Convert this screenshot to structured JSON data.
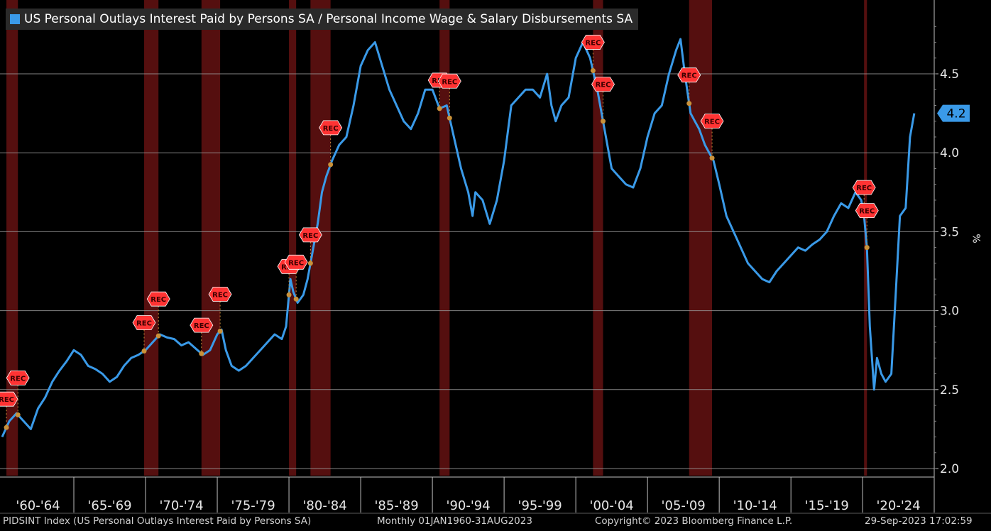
{
  "colors": {
    "series": "#3a9ae8",
    "recession": "#5a1010",
    "background": "#000000",
    "grid": "#9a9a9a",
    "rec_marker": "#ff3333",
    "dot": "#c9913a"
  },
  "footer": {
    "index": "PIDSINT Index (US Personal Outlays Interest Paid by Persons SA)",
    "range": "Monthly 01JAN1960-31AUG2023",
    "copyright": "Copyright© 2023 Bloomberg Finance L.P.",
    "timestamp": "29-Sep-2023 17:02:59"
  },
  "chart_data": {
    "type": "line",
    "title": "",
    "xlabel": "",
    "ylabel": "%",
    "ylim": [
      2.0,
      4.9
    ],
    "xlim": [
      1960.0,
      2024.0
    ],
    "grid": true,
    "legend": "top-left",
    "yticks": [
      "2.0",
      "2.5",
      "3.0",
      "3.5",
      "4.0",
      "4.5"
    ],
    "ytick_values": [
      2.0,
      2.5,
      3.0,
      3.5,
      4.0,
      4.5
    ],
    "xtick_labels": [
      "'60-'64",
      "'65-'69",
      "'70-'74",
      "'75-'79",
      "'80-'84",
      "'85-'89",
      "'90-'94",
      "'95-'99",
      "'00-'04",
      "'05-'09",
      "'10-'14",
      "'15-'19",
      "'20-'24"
    ],
    "xtick_starts": [
      1960,
      1965,
      1970,
      1975,
      1980,
      1985,
      1990,
      1995,
      2000,
      2005,
      2010,
      2015,
      2020
    ],
    "last_value_label": "4.2",
    "recession_label": "REC",
    "recessions": [
      [
        1960.3,
        1961.1
      ],
      [
        1969.9,
        1970.9
      ],
      [
        1973.9,
        1975.2
      ],
      [
        1980.0,
        1980.5
      ],
      [
        1981.5,
        1982.9
      ],
      [
        1990.5,
        1991.2
      ],
      [
        2001.2,
        2001.9
      ],
      [
        2007.9,
        2009.5
      ],
      [
        2020.1,
        2020.3
      ]
    ],
    "series": [
      {
        "name": "US Personal Outlays Interest Paid by Persons SA / Personal Income Wage & Salary Disbursements SA",
        "x": [
          1960.0,
          1960.5,
          1961.0,
          1961.5,
          1962.0,
          1962.5,
          1963.0,
          1963.5,
          1964.0,
          1964.5,
          1965.0,
          1965.5,
          1966.0,
          1966.5,
          1967.0,
          1967.5,
          1968.0,
          1968.5,
          1969.0,
          1969.5,
          1970.0,
          1970.5,
          1971.0,
          1971.5,
          1972.0,
          1972.5,
          1973.0,
          1973.5,
          1974.0,
          1974.5,
          1975.0,
          1975.3,
          1975.6,
          1976.0,
          1976.5,
          1977.0,
          1977.5,
          1978.0,
          1978.5,
          1979.0,
          1979.5,
          1979.8,
          1980.1,
          1980.3,
          1980.6,
          1981.0,
          1981.3,
          1981.6,
          1982.0,
          1982.3,
          1982.6,
          1983.0,
          1983.5,
          1984.0,
          1984.5,
          1985.0,
          1985.5,
          1986.0,
          1986.5,
          1987.0,
          1987.5,
          1988.0,
          1988.5,
          1989.0,
          1989.5,
          1990.0,
          1990.5,
          1991.0,
          1991.5,
          1992.0,
          1992.5,
          1992.8,
          1993.0,
          1993.5,
          1994.0,
          1994.5,
          1995.0,
          1995.5,
          1996.0,
          1996.5,
          1997.0,
          1997.5,
          1998.0,
          1998.3,
          1998.6,
          1999.0,
          1999.5,
          2000.0,
          2000.5,
          2001.0,
          2001.5,
          2002.0,
          2002.5,
          2003.0,
          2003.5,
          2004.0,
          2004.5,
          2005.0,
          2005.5,
          2006.0,
          2006.5,
          2007.0,
          2007.3,
          2007.6,
          2008.0,
          2008.3,
          2008.6,
          2009.0,
          2009.3,
          2009.6,
          2010.0,
          2010.5,
          2011.0,
          2011.5,
          2012.0,
          2012.5,
          2013.0,
          2013.5,
          2014.0,
          2014.5,
          2015.0,
          2015.5,
          2016.0,
          2016.5,
          2017.0,
          2017.5,
          2018.0,
          2018.5,
          2019.0,
          2019.5,
          2019.9,
          2020.1,
          2020.3,
          2020.5,
          2020.8,
          2021.0,
          2021.3,
          2021.6,
          2022.0,
          2022.3,
          2022.6,
          2023.0,
          2023.3,
          2023.6
        ],
        "values": [
          2.2,
          2.3,
          2.35,
          2.3,
          2.25,
          2.38,
          2.45,
          2.55,
          2.62,
          2.68,
          2.75,
          2.72,
          2.65,
          2.63,
          2.6,
          2.55,
          2.58,
          2.65,
          2.7,
          2.72,
          2.75,
          2.8,
          2.85,
          2.83,
          2.82,
          2.78,
          2.8,
          2.76,
          2.72,
          2.75,
          2.85,
          2.88,
          2.75,
          2.65,
          2.62,
          2.65,
          2.7,
          2.75,
          2.8,
          2.85,
          2.82,
          2.9,
          3.2,
          3.12,
          3.05,
          3.1,
          3.2,
          3.35,
          3.55,
          3.75,
          3.85,
          3.95,
          4.05,
          4.1,
          4.3,
          4.55,
          4.65,
          4.7,
          4.55,
          4.4,
          4.3,
          4.2,
          4.15,
          4.25,
          4.4,
          4.4,
          4.28,
          4.3,
          4.1,
          3.9,
          3.75,
          3.6,
          3.75,
          3.7,
          3.55,
          3.7,
          3.95,
          4.3,
          4.35,
          4.4,
          4.4,
          4.35,
          4.5,
          4.3,
          4.2,
          4.3,
          4.35,
          4.6,
          4.7,
          4.6,
          4.4,
          4.15,
          3.9,
          3.85,
          3.8,
          3.78,
          3.9,
          4.1,
          4.25,
          4.3,
          4.5,
          4.65,
          4.72,
          4.5,
          4.25,
          4.2,
          4.15,
          4.05,
          4.0,
          3.95,
          3.8,
          3.6,
          3.5,
          3.4,
          3.3,
          3.25,
          3.2,
          3.18,
          3.25,
          3.3,
          3.35,
          3.4,
          3.38,
          3.42,
          3.45,
          3.5,
          3.6,
          3.68,
          3.65,
          3.75,
          3.7,
          3.6,
          3.4,
          2.9,
          2.5,
          2.7,
          2.6,
          2.55,
          2.6,
          3.1,
          3.6,
          3.65,
          4.1,
          4.25
        ]
      }
    ]
  }
}
